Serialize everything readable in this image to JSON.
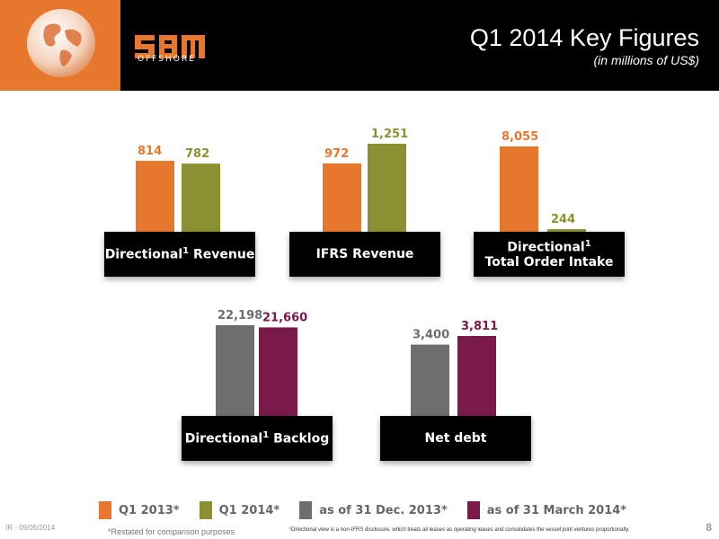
{
  "header": {
    "title": "Q1 2014 Key Figures",
    "subtitle": "(in millions of US$)",
    "logo_text": "OFFSHORE"
  },
  "colors": {
    "q1_2013": "#e8772e",
    "q1_2014": "#8a9133",
    "dec_2013": "#6d6e70",
    "mar_2014": "#7a1a4a",
    "header_bg": "#000000",
    "globe_bg": "#e8772e"
  },
  "chart_data": [
    {
      "type": "bar",
      "label_main": "Directional",
      "label_sup": "1",
      "label_rest": "Revenue",
      "categories": [
        "Q1 2013*",
        "Q1 2014*"
      ],
      "values": [
        814,
        782
      ],
      "value_labels": [
        "814",
        "782"
      ],
      "colors": [
        "#e8772e",
        "#8a9133"
      ]
    },
    {
      "type": "bar",
      "label_main": "IFRS Revenue",
      "label_sup": "",
      "label_rest": "",
      "categories": [
        "Q1 2013*",
        "Q1 2014*"
      ],
      "values": [
        972,
        1251
      ],
      "value_labels": [
        "972",
        "1,251"
      ],
      "colors": [
        "#e8772e",
        "#8a9133"
      ]
    },
    {
      "type": "bar",
      "label_main": "Directional",
      "label_sup": "1",
      "label_rest": "Total Order Intake",
      "categories": [
        "Q1 2013*",
        "Q1 2014*"
      ],
      "values": [
        8055,
        244
      ],
      "value_labels": [
        "8,055",
        "244"
      ],
      "colors": [
        "#e8772e",
        "#8a9133"
      ]
    },
    {
      "type": "bar",
      "label_main": "Directional",
      "label_sup": "1",
      "label_rest": "Backlog",
      "categories": [
        "as of 31 Dec. 2013*",
        "as of 31 March 2014*"
      ],
      "values": [
        22198,
        21660
      ],
      "value_labels": [
        "22,198",
        "21,660"
      ],
      "colors": [
        "#6d6e70",
        "#7a1a4a"
      ]
    },
    {
      "type": "bar",
      "label_main": "Net debt",
      "label_sup": "",
      "label_rest": "",
      "categories": [
        "as of 31 Dec. 2013*",
        "as of 31 March 2014*"
      ],
      "values": [
        3400,
        3811
      ],
      "value_labels": [
        "3,400",
        "3,811"
      ],
      "colors": [
        "#6d6e70",
        "#7a1a4a"
      ]
    }
  ],
  "legend": [
    {
      "label": "Q1 2013*",
      "color": "#e8772e"
    },
    {
      "label": "Q1 2014*",
      "color": "#8a9133"
    },
    {
      "label": "as of 31 Dec. 2013*",
      "color": "#6d6e70"
    },
    {
      "label": "as of 31 March 2014*",
      "color": "#7a1a4a"
    }
  ],
  "footer": {
    "left": "IR - 09/05/2014",
    "restated": "*Restated for comparison purposes",
    "note": "¹Directional view is a non-IFRS disclosure, which treats all leases as operating leases and consolidates the vessel joint ventures proportionally.",
    "page": "8"
  }
}
